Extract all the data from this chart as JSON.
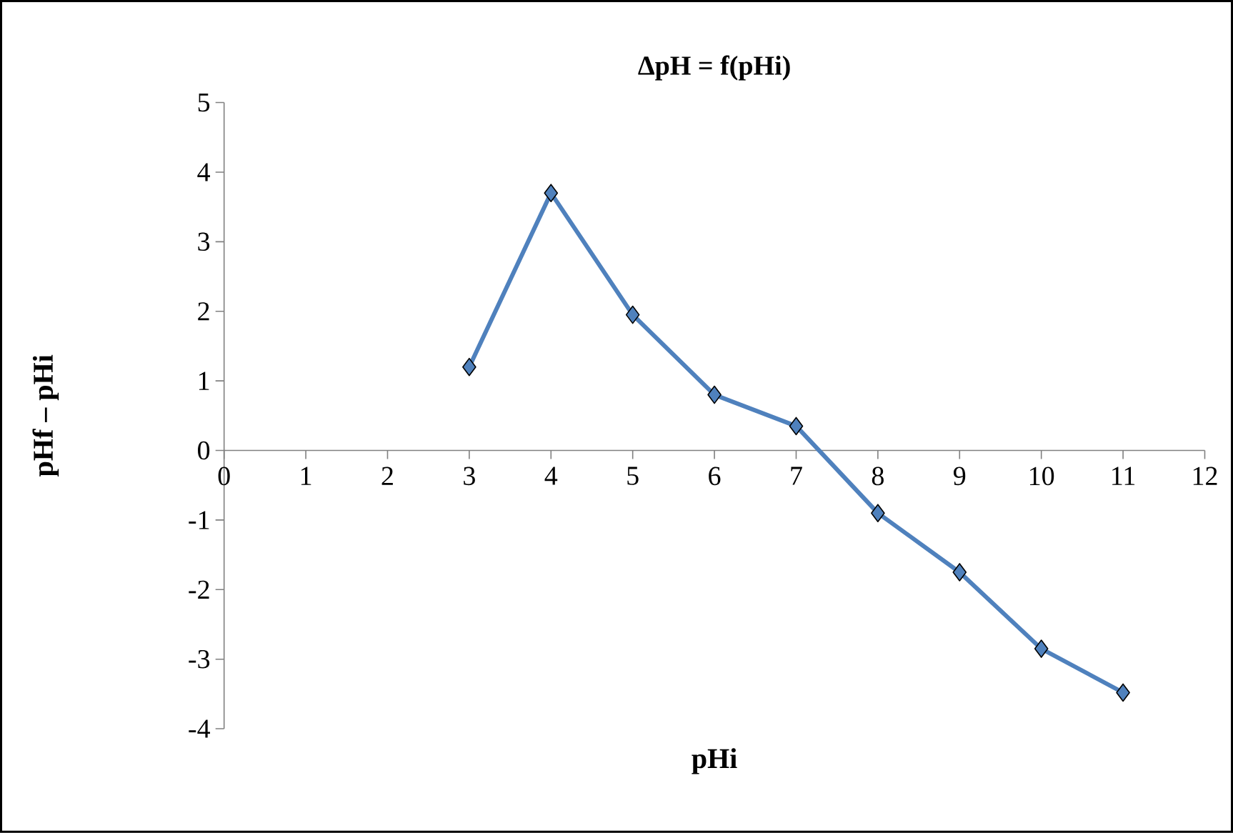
{
  "chart_data": {
    "type": "line",
    "title": "ΔpH = f(pHi)",
    "xlabel": "pHi",
    "ylabel": "pHf – pHi",
    "x": [
      3,
      4,
      5,
      6,
      7,
      8,
      9,
      10,
      11
    ],
    "series": [
      {
        "color": "#4f81bd",
        "values": [
          1.2,
          3.7,
          1.95,
          0.8,
          0.35,
          -0.9,
          -1.75,
          -2.85,
          -3.48
        ]
      }
    ],
    "xlim": [
      0,
      12
    ],
    "ylim": [
      -4,
      5
    ],
    "xticks": [
      0,
      1,
      2,
      3,
      4,
      5,
      6,
      7,
      8,
      9,
      10,
      11,
      12
    ],
    "yticks": [
      -4,
      -3,
      -2,
      -1,
      0,
      1,
      2,
      3,
      4,
      5
    ],
    "marker": "diamond",
    "line_style": "solid",
    "grid": false
  }
}
